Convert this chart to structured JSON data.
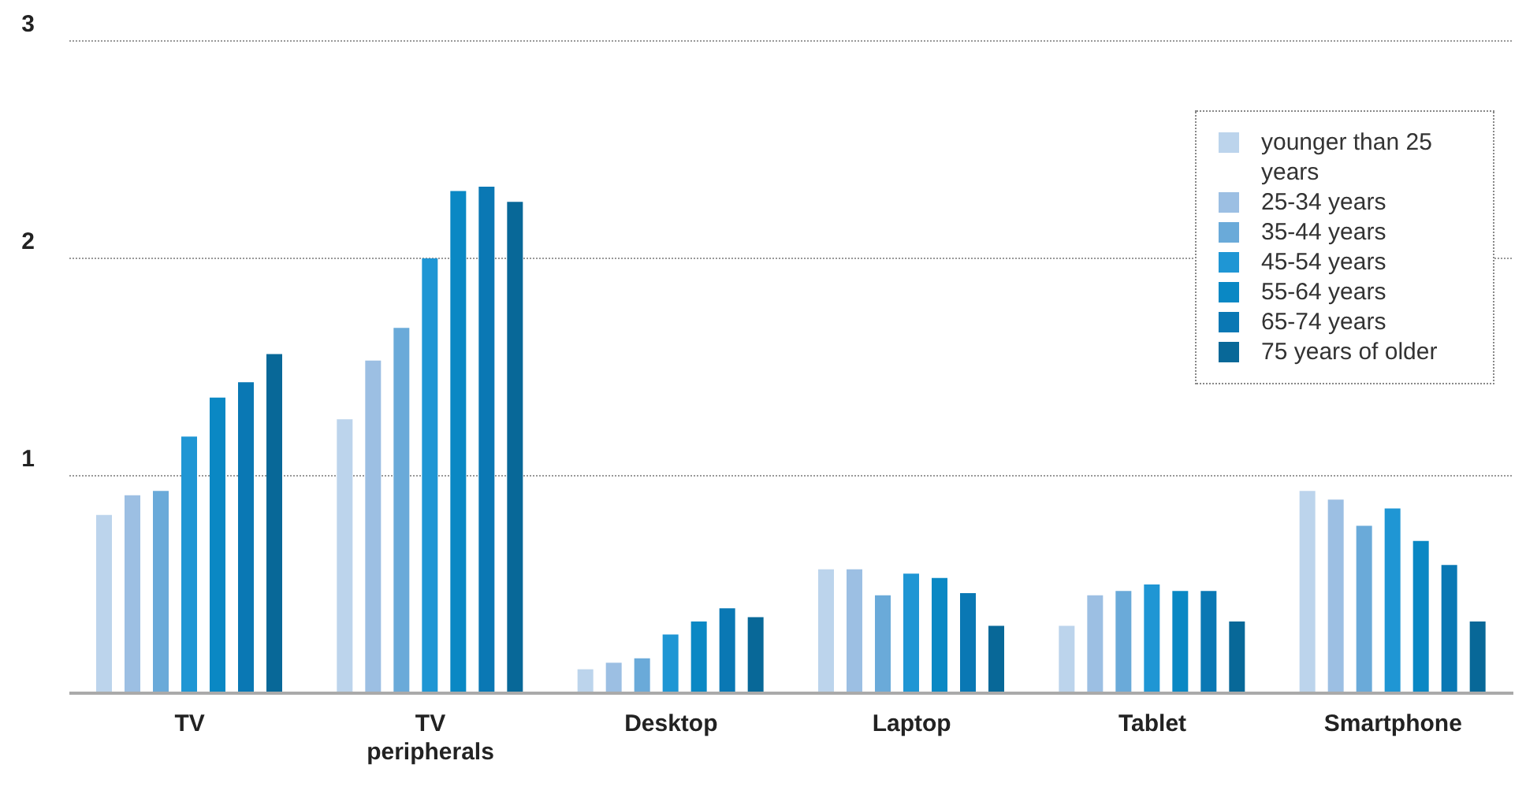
{
  "chart_data": {
    "type": "bar",
    "categories": [
      "TV",
      "TV peripherals",
      "Desktop",
      "Laptop",
      "Tablet",
      "Smartphone"
    ],
    "series": [
      {
        "name": "younger than 25 years",
        "color": "#bcd4ec",
        "values": [
          0.82,
          1.26,
          0.11,
          0.57,
          0.31,
          0.93
        ]
      },
      {
        "name": "25-34 years",
        "color": "#9cbfe3",
        "values": [
          0.91,
          1.53,
          0.14,
          0.57,
          0.45,
          0.89
        ]
      },
      {
        "name": "35-44 years",
        "color": "#6aaad9",
        "values": [
          0.93,
          1.68,
          0.16,
          0.45,
          0.47,
          0.77
        ]
      },
      {
        "name": "45-54 years",
        "color": "#1f96d4",
        "values": [
          1.18,
          2.0,
          0.27,
          0.55,
          0.5,
          0.85
        ]
      },
      {
        "name": "55-64 years",
        "color": "#0a88c4",
        "values": [
          1.36,
          2.31,
          0.33,
          0.53,
          0.47,
          0.7
        ]
      },
      {
        "name": "65-74 years",
        "color": "#0a78b4",
        "values": [
          1.43,
          2.33,
          0.39,
          0.46,
          0.47,
          0.59
        ]
      },
      {
        "name": "75 years of older",
        "color": "#086898",
        "values": [
          1.56,
          2.26,
          0.35,
          0.31,
          0.33,
          0.33
        ]
      }
    ],
    "ylim": [
      0,
      3
    ],
    "yticks": [
      {
        "value": 0,
        "label": null
      },
      1,
      2,
      3
    ],
    "grid": "y",
    "legend": "top right"
  }
}
